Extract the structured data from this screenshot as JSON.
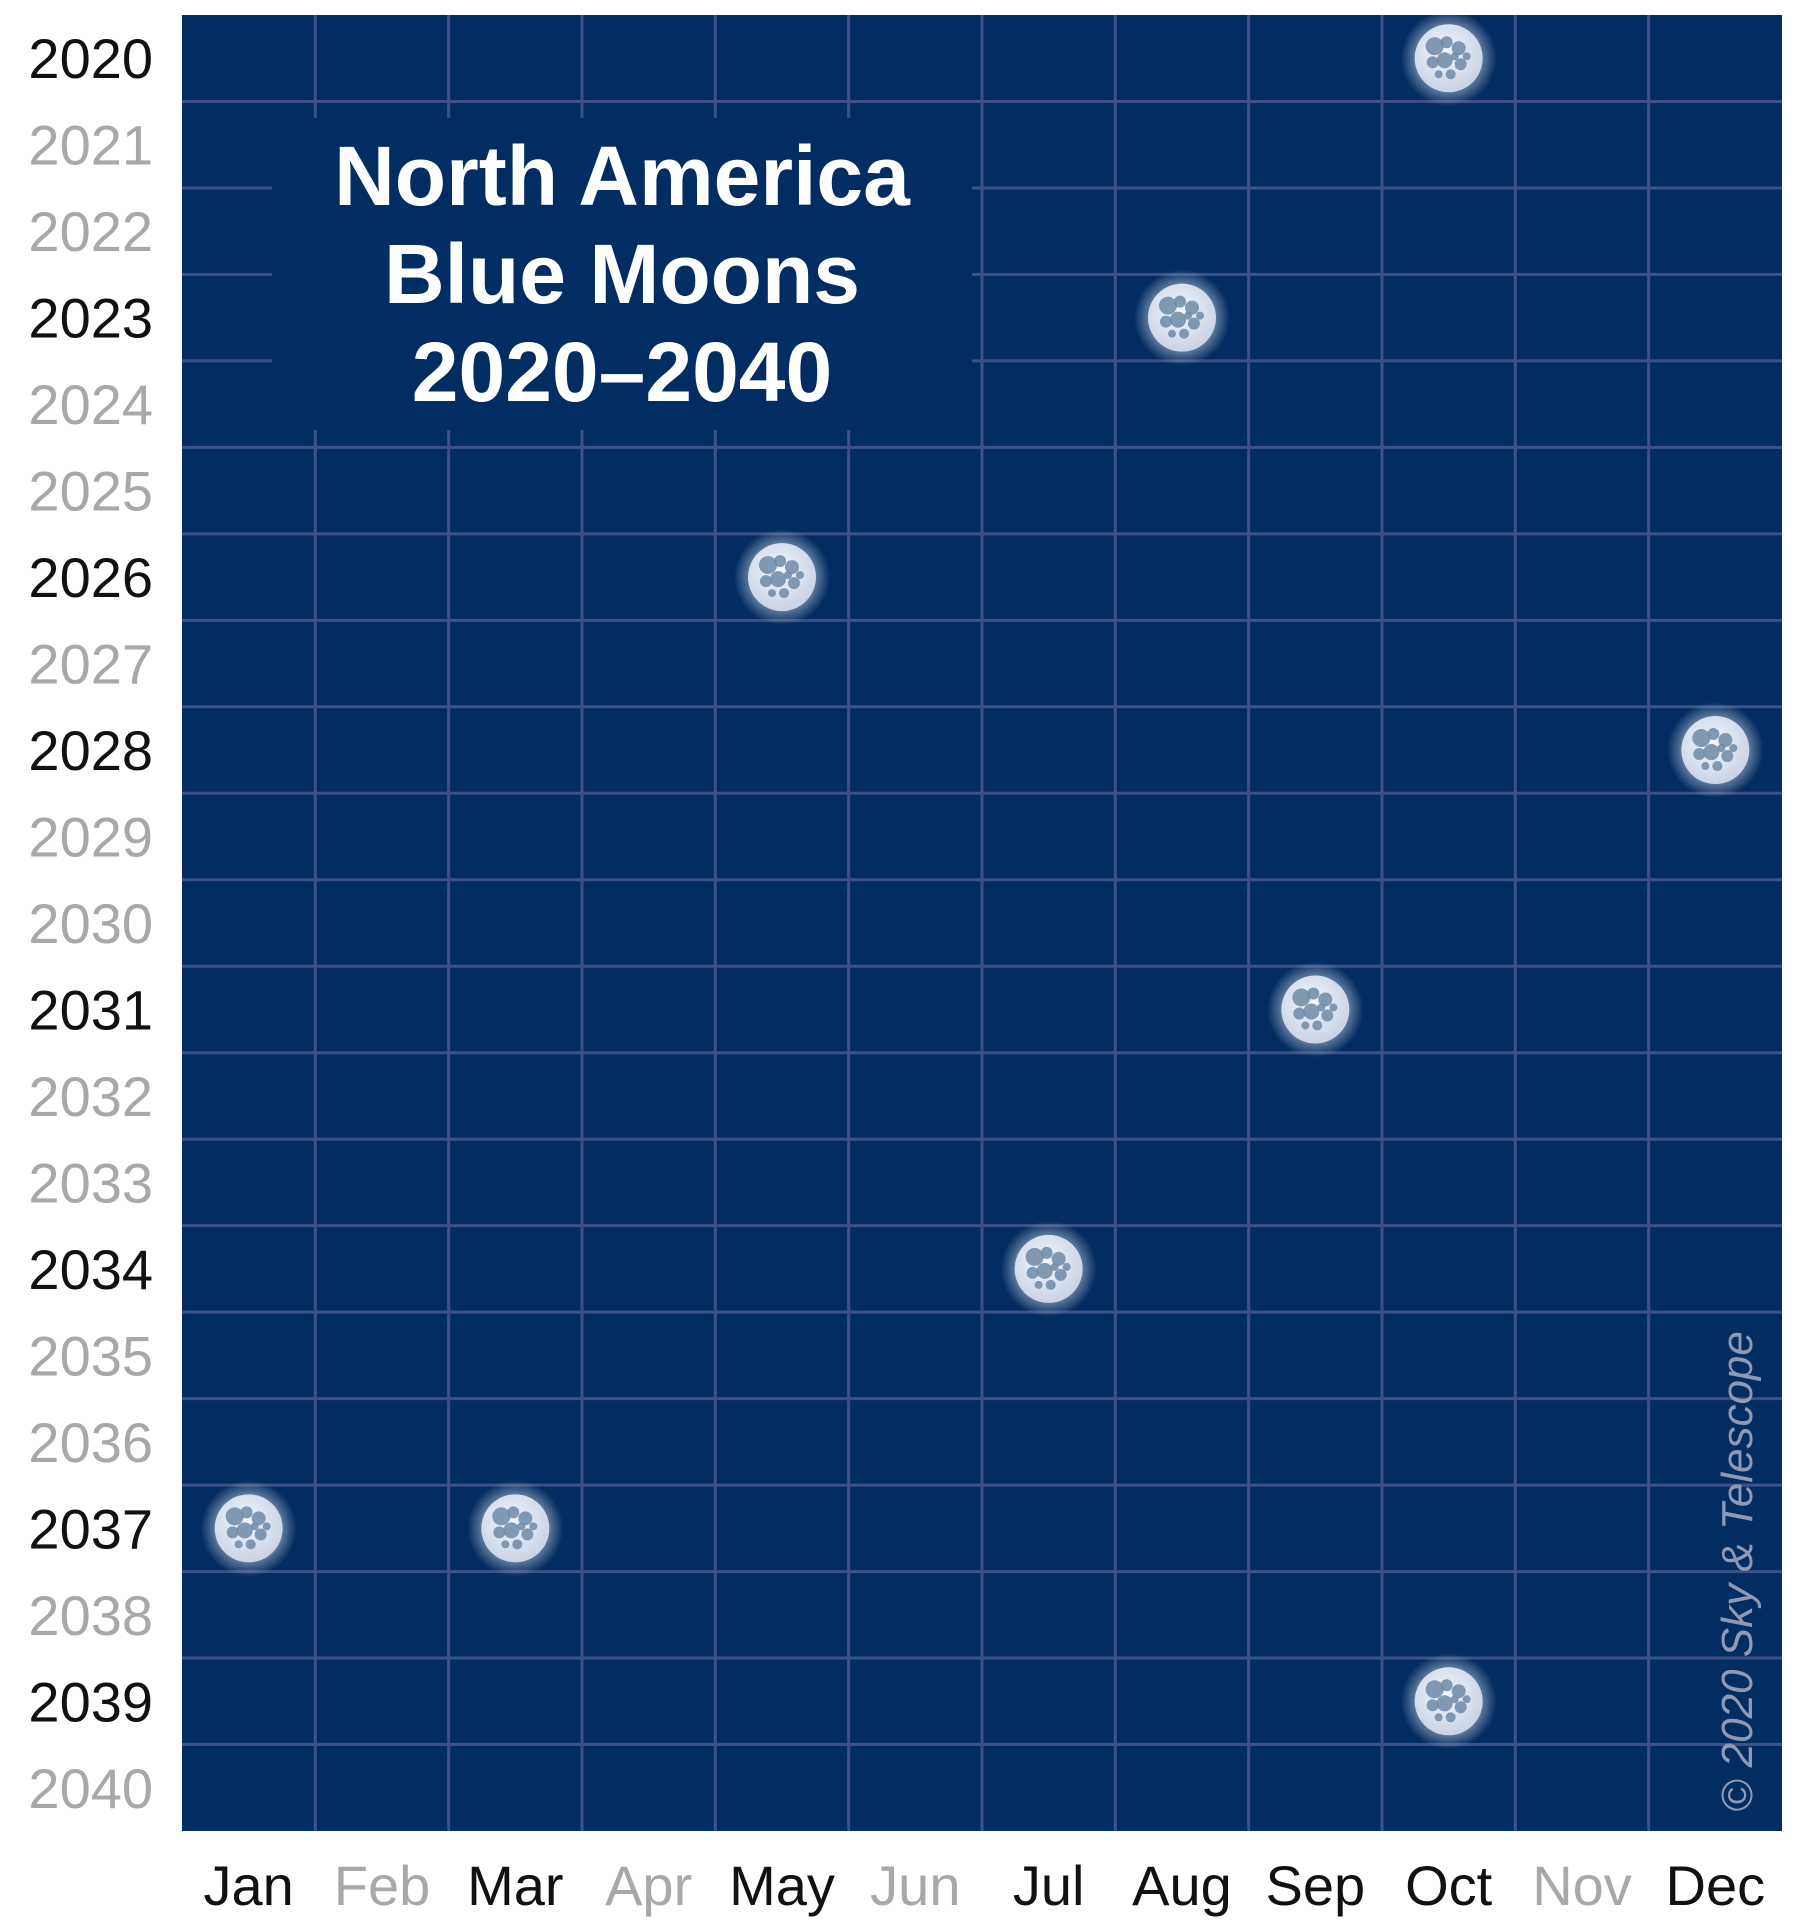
{
  "chart_data": {
    "type": "scatter",
    "title_lines": [
      "North America",
      "Blue Moons",
      "2020–2040"
    ],
    "months": [
      "Jan",
      "Feb",
      "Mar",
      "Apr",
      "May",
      "Jun",
      "Jul",
      "Aug",
      "Sep",
      "Oct",
      "Nov",
      "Dec"
    ],
    "years": [
      "2020",
      "2021",
      "2022",
      "2023",
      "2024",
      "2025",
      "2026",
      "2027",
      "2028",
      "2029",
      "2030",
      "2031",
      "2032",
      "2033",
      "2034",
      "2035",
      "2036",
      "2037",
      "2038",
      "2039",
      "2040"
    ],
    "highlighted_months": [
      "Jan",
      "Mar",
      "May",
      "Jul",
      "Aug",
      "Sep",
      "Oct",
      "Dec"
    ],
    "highlighted_years": [
      "2020",
      "2023",
      "2026",
      "2028",
      "2031",
      "2034",
      "2037",
      "2039"
    ],
    "points": [
      {
        "year": "2020",
        "month": "Oct"
      },
      {
        "year": "2023",
        "month": "Aug"
      },
      {
        "year": "2026",
        "month": "May"
      },
      {
        "year": "2028",
        "month": "Dec"
      },
      {
        "year": "2031",
        "month": "Sep"
      },
      {
        "year": "2034",
        "month": "Jul"
      },
      {
        "year": "2037",
        "month": "Jan"
      },
      {
        "year": "2037",
        "month": "Mar"
      },
      {
        "year": "2039",
        "month": "Oct"
      }
    ],
    "credit": "© 2020 Sky & Telescope",
    "colors": {
      "background": "#022d63",
      "grid": "#3c5286",
      "label_active": "#111111",
      "label_muted": "#a8a8a8",
      "moon_light": "#e6ebf5",
      "moon_dark": "#6f8aa6"
    }
  }
}
